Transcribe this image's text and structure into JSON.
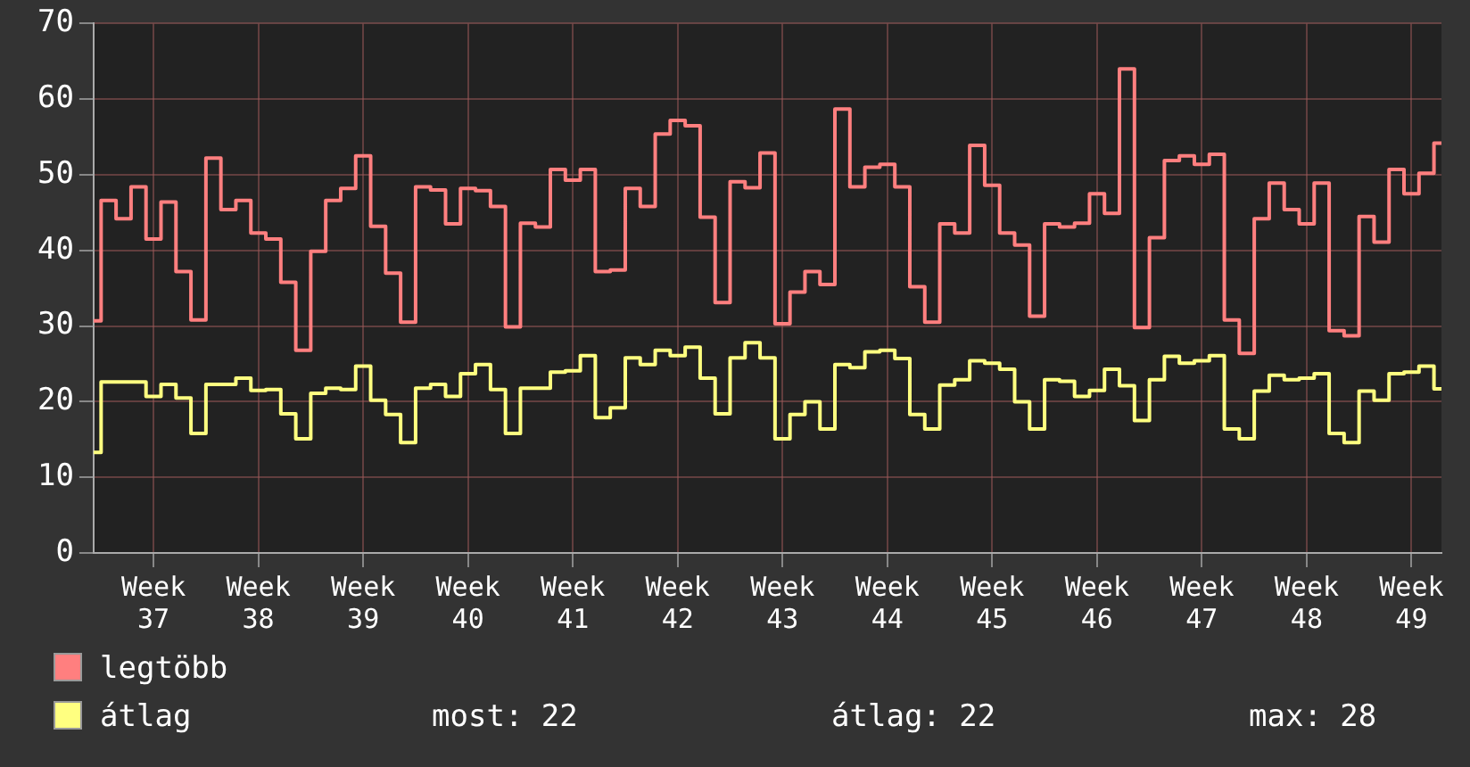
{
  "chart_data": {
    "type": "step",
    "categories": [
      null,
      null,
      null,
      null,
      "Week 37",
      null,
      null,
      null,
      null,
      null,
      null,
      "Week 38",
      null,
      null,
      null,
      null,
      null,
      null,
      "Week 39",
      null,
      null,
      null,
      null,
      null,
      null,
      "Week 40",
      null,
      null,
      null,
      null,
      null,
      null,
      "Week 41",
      null,
      null,
      null,
      null,
      null,
      null,
      "Week 42",
      null,
      null,
      null,
      null,
      null,
      null,
      "Week 43",
      null,
      null,
      null,
      null,
      null,
      null,
      "Week 44",
      null,
      null,
      null,
      null,
      null,
      null,
      "Week 45",
      null,
      null,
      null,
      null,
      null,
      null,
      "Week 46",
      null,
      null,
      null,
      null,
      null,
      null,
      "Week 47",
      null,
      null,
      null,
      null,
      null,
      null,
      "Week 48",
      null,
      null,
      null,
      null,
      null,
      null,
      "Week 49",
      null,
      null
    ],
    "series": [
      {
        "name": "legtöbb",
        "color": "#ff7f7f",
        "values": [
          30.7,
          46.6,
          44.2,
          48.4,
          41.5,
          46.4,
          37.2,
          30.8,
          52.2,
          45.4,
          46.6,
          42.3,
          41.5,
          35.8,
          26.8,
          39.9,
          46.6,
          48.2,
          52.5,
          43.2,
          37.0,
          30.5,
          48.4,
          48.0,
          43.5,
          48.2,
          47.9,
          45.8,
          29.9,
          43.6,
          43.1,
          50.7,
          49.3,
          50.7,
          37.2,
          37.4,
          48.2,
          45.8,
          55.4,
          57.2,
          56.5,
          44.4,
          33.1,
          49.1,
          48.3,
          52.9,
          30.3,
          34.5,
          37.2,
          35.5,
          58.7,
          48.4,
          51.0,
          51.4,
          48.4,
          35.2,
          30.5,
          43.5,
          42.3,
          53.9,
          48.6,
          42.3,
          40.7,
          31.3,
          43.5,
          43.1,
          43.6,
          47.5,
          44.9,
          64.0,
          29.8,
          41.7,
          51.9,
          52.5,
          51.4,
          52.7,
          30.8,
          26.4,
          44.2,
          48.9,
          45.4,
          43.5,
          48.9,
          29.4,
          28.7,
          44.5,
          41.1,
          50.7,
          47.5,
          50.2,
          54.2
        ]
      },
      {
        "name": "átlag",
        "color": "#ffff80",
        "values": [
          13.3,
          22.6,
          22.6,
          22.6,
          20.7,
          22.3,
          20.5,
          15.8,
          22.3,
          22.3,
          23.1,
          21.5,
          21.6,
          18.4,
          15.1,
          21.1,
          21.8,
          21.6,
          24.7,
          20.2,
          18.3,
          14.6,
          21.8,
          22.3,
          20.7,
          23.7,
          24.9,
          21.6,
          15.8,
          21.8,
          21.8,
          23.9,
          24.1,
          26.1,
          17.9,
          19.2,
          25.8,
          24.9,
          26.8,
          26.1,
          27.2,
          23.1,
          18.4,
          25.8,
          27.8,
          25.8,
          15.1,
          18.3,
          20.0,
          16.4,
          24.9,
          24.5,
          26.6,
          26.8,
          25.7,
          18.3,
          16.4,
          22.2,
          22.9,
          25.4,
          25.1,
          24.3,
          20.0,
          16.4,
          22.9,
          22.7,
          20.7,
          21.5,
          24.3,
          22.1,
          17.5,
          22.9,
          26.0,
          25.1,
          25.4,
          26.1,
          16.4,
          15.1,
          21.4,
          23.5,
          22.9,
          23.1,
          23.7,
          15.8,
          14.6,
          21.4,
          20.2,
          23.7,
          23.9,
          24.7,
          21.7
        ]
      }
    ],
    "ylim": [
      0,
      70
    ],
    "yticks": [
      0,
      10,
      20,
      30,
      40,
      50,
      60,
      70
    ],
    "grid": true,
    "legend": "bottom left",
    "annotations": [
      "most: 22",
      "átlag: 22",
      "max: 28"
    ]
  }
}
